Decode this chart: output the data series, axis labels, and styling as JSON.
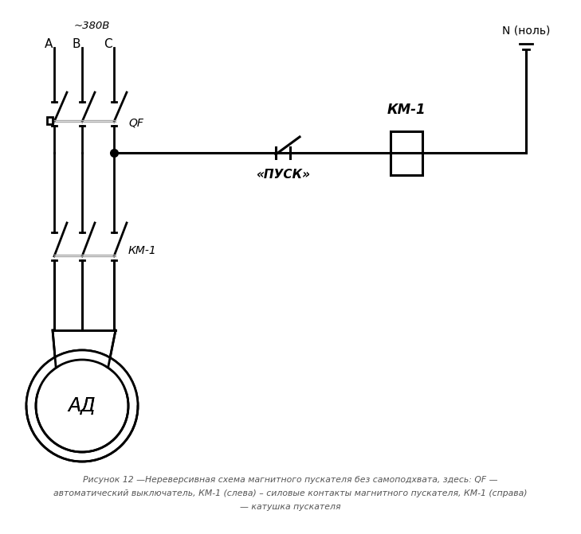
{
  "bg_color": "#ffffff",
  "line_color": "#000000",
  "gray_color": "#aaaaaa",
  "voltage_label": "~380В",
  "phase_A": "A",
  "phase_B": "B",
  "phase_C": "C",
  "qf_label": "QF",
  "km1_left_label": "КМ-1",
  "km1_right_label": "КМ-1",
  "pusk_label": "«ПУСК»",
  "n_label": "N (ноль)",
  "ad_label": "АД",
  "caption1": "Рисунок 12 —Нереверсивная схема магнитного пускателя без самоподхвата, здесь: QF —",
  "caption2": "автоматический выключатель, КМ-1 (слева) – силовые контакты магнитного пускателя, КМ-1 (справа)",
  "caption3": "— катушка пускателя"
}
